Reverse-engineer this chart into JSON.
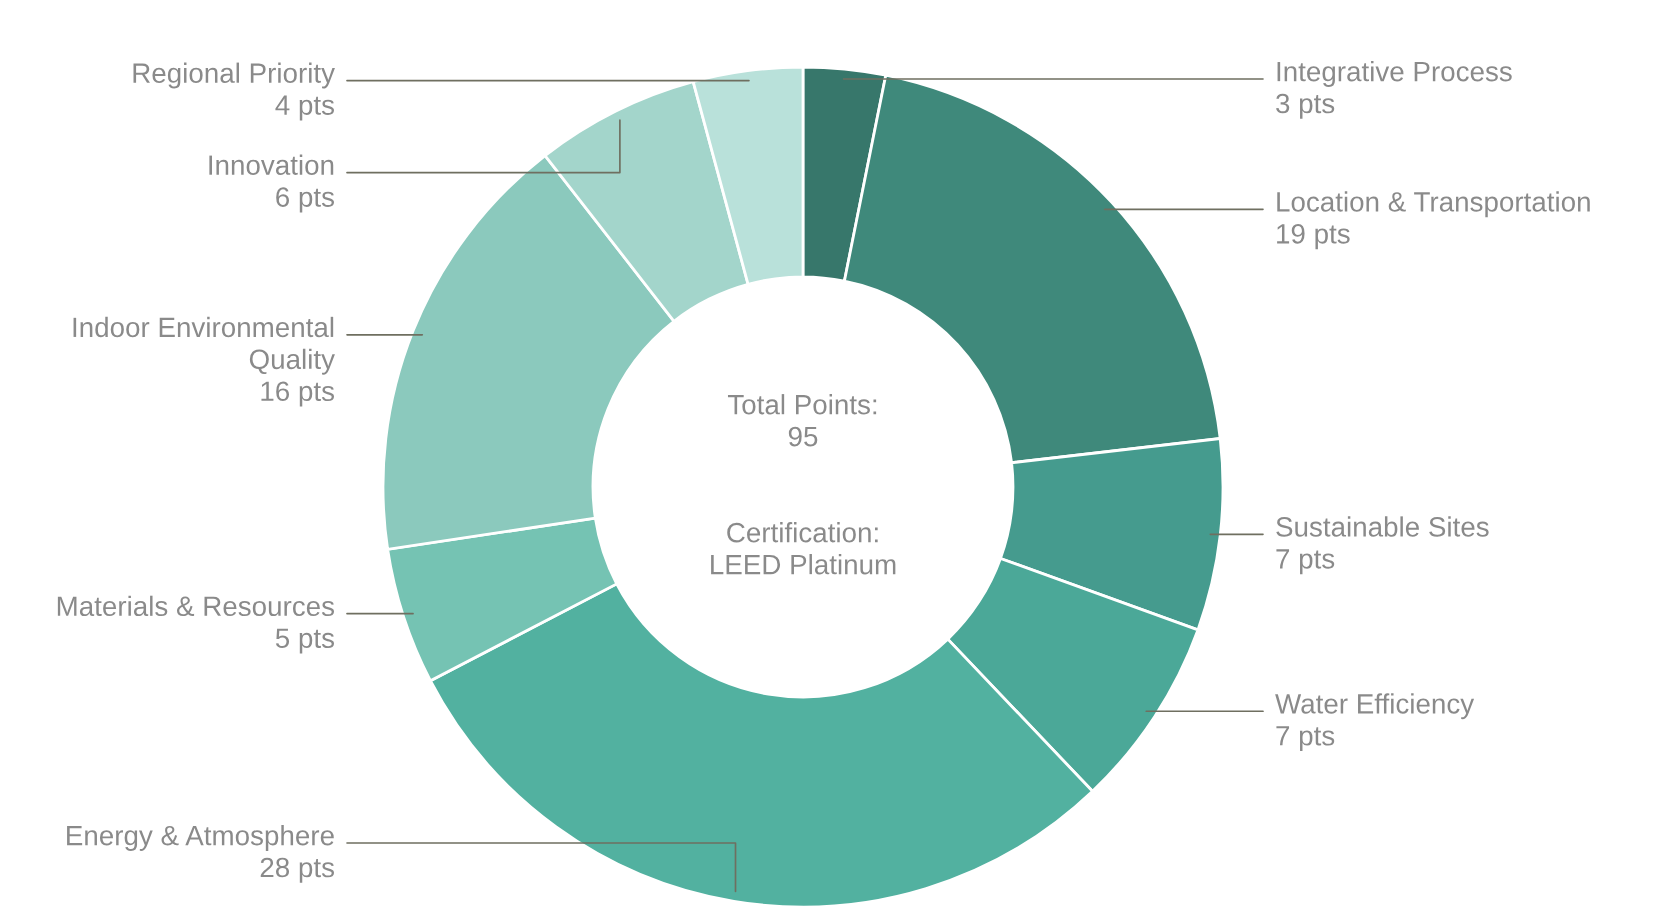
{
  "chart_data": {
    "type": "donut",
    "categories": [
      "Integrative Process",
      "Location & Transportation",
      "Sustainable Sites",
      "Water Efficiency",
      "Energy & Atmosphere",
      "Materials & Resources",
      "Indoor Environmental\nQuality",
      "Innovation",
      "Regional Priority"
    ],
    "values": [
      3,
      19,
      7,
      7,
      28,
      5,
      16,
      6,
      4
    ],
    "value_labels": [
      "3 pts",
      "19 pts",
      "7 pts",
      "7 pts",
      "28 pts",
      "5 pts",
      "16 pts",
      "6 pts",
      "4 pts"
    ],
    "colors": [
      "#37776b",
      "#3f897b",
      "#459b8e",
      "#4ba898",
      "#52b1a0",
      "#75c3b3",
      "#8bc9bd",
      "#a3d5cb",
      "#b9e1da"
    ],
    "annotations": [
      "Total Points:\n95",
      "Certification:\nLEED Platinum"
    ],
    "legend": false
  }
}
